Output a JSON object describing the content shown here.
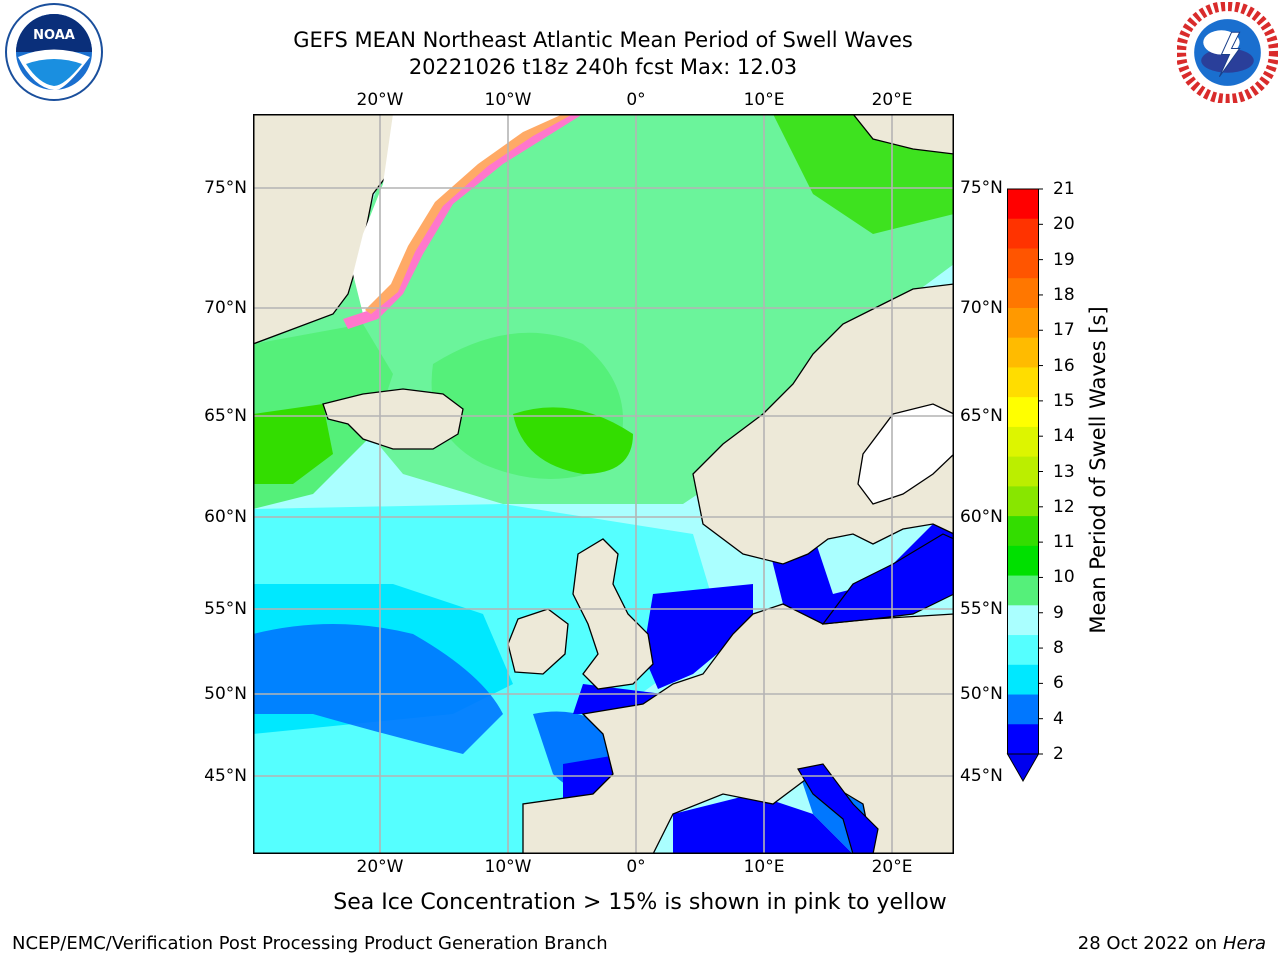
{
  "title": {
    "line1": "GEFS MEAN Northeast Atlantic Mean Period of Swell Waves",
    "line2": "20221026 t18z 240h fcst   Max: 12.03"
  },
  "logos": {
    "left": "noaa-logo",
    "right": "nws-logo"
  },
  "map": {
    "lon_ticks": [
      "20°W",
      "10°W",
      "0°",
      "10°E",
      "20°E"
    ],
    "lat_ticks": [
      "75°N",
      "70°N",
      "65°N",
      "60°N",
      "55°N",
      "50°N",
      "45°N"
    ],
    "colors": {
      "land": "#ede9d8",
      "ice_free_white": "#ffffff",
      "grid": "#b4b4b4",
      "coast": "#000000"
    }
  },
  "colorbar": {
    "label": "Mean Period of Swell Waves [s]",
    "ticks": [
      "21",
      "20",
      "19",
      "18",
      "17",
      "16",
      "15",
      "14",
      "13",
      "12",
      "11",
      "10",
      "9",
      "8",
      "6",
      "4",
      "2"
    ],
    "colors": [
      "#ff0000",
      "#ff3300",
      "#ff5500",
      "#ff7700",
      "#ff9900",
      "#ffbb00",
      "#ffdd00",
      "#ffff00",
      "#ddf500",
      "#bbee00",
      "#88e600",
      "#33dd00",
      "#00e000",
      "#55f07a",
      "#aaffff",
      "#55ffff",
      "#00e8ff",
      "#0077ff",
      "#0000ff"
    ],
    "extend_color": "#0000ee"
  },
  "notes": {
    "ice": "Sea Ice Concentration > 15% is shown in pink to yellow",
    "producer": "NCEP/EMC/Verification Post Processing Product Generation Branch",
    "date": "28 Oct 2022 on",
    "machine": "Hera"
  }
}
